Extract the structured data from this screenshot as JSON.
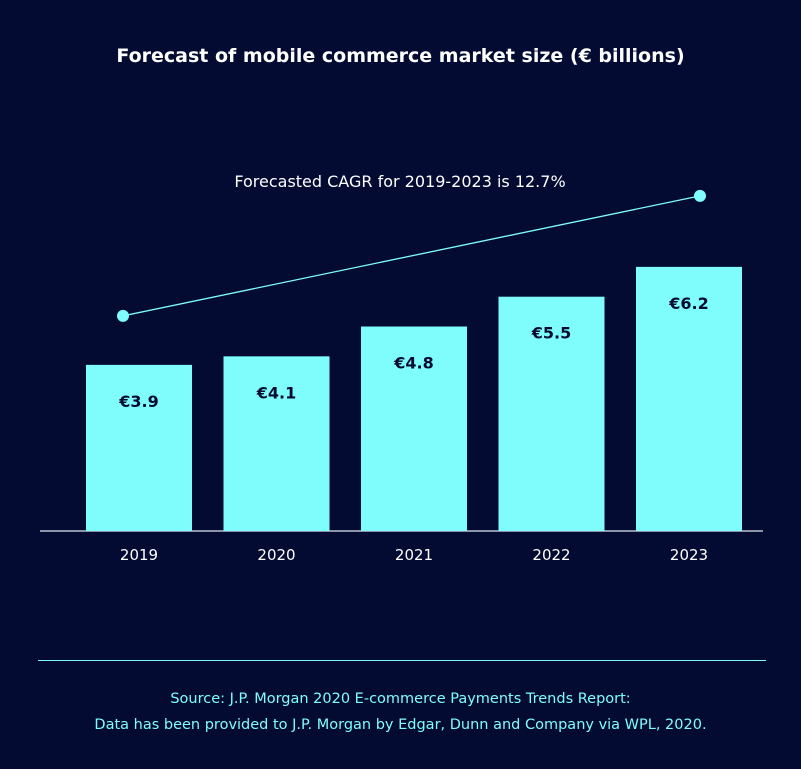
{
  "chart_data": {
    "type": "bar",
    "title": "Forecast of mobile commerce market size (€ billions)",
    "categories": [
      "2019",
      "2020",
      "2021",
      "2022",
      "2023"
    ],
    "values": [
      3.9,
      4.1,
      4.8,
      5.5,
      6.2
    ],
    "value_labels": [
      "€3.9",
      "€4.1",
      "€4.8",
      "€5.5",
      "€6.2"
    ],
    "annotation": "Forecasted CAGR for 2019-2023 is 12.7%",
    "trend_line": {
      "from": "2019",
      "to": "2023"
    },
    "xlabel": "",
    "ylabel": "",
    "ylim": [
      0,
      7.2
    ],
    "grid": false,
    "legend": "none",
    "colors": {
      "background": "#040B32",
      "bar": "#7FFDFD",
      "bar_label": "#040B32",
      "text": "#ffffff",
      "accent": "#7FFDFD"
    }
  },
  "source": {
    "line1": "Source: J.P. Morgan 2020 E-commerce Payments Trends Report:",
    "line2": "Data has been provided to J.P. Morgan by Edgar, Dunn and Company via WPL, 2020."
  }
}
